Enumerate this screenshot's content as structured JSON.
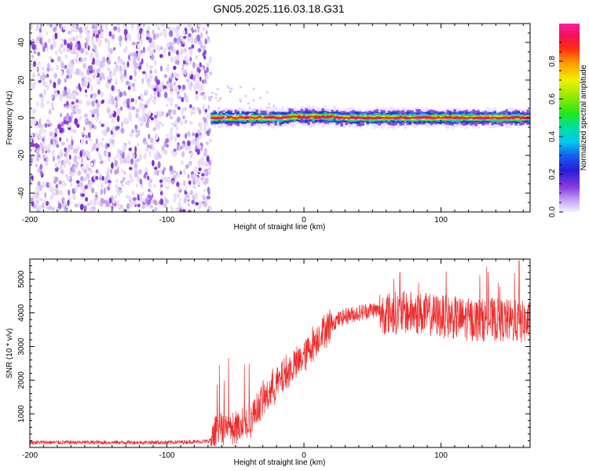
{
  "title": "GN05.2025.116.03.18.G31",
  "chart_data": [
    {
      "type": "heatmap",
      "xlabel": "Height of straight line (km)",
      "ylabel": "Frequency (Hz)",
      "xlim": [
        -200,
        165
      ],
      "ylim": [
        -50,
        50
      ],
      "xticks": [
        -200,
        -100,
        0,
        100
      ],
      "yticks": [
        -40,
        -20,
        0,
        20,
        40
      ],
      "colorbar": {
        "label": "Normalized spectral amplitude",
        "range": [
          0,
          1
        ],
        "ticks": [
          0.0,
          0.2,
          0.4,
          0.6,
          0.8
        ]
      },
      "regions": [
        {
          "x_range": [
            -200,
            -68
          ],
          "description_values": "broadband noise, amplitude ~0.05-0.15 across all frequencies"
        },
        {
          "x_range": [
            -68,
            165
          ],
          "center_frequency": 0,
          "peak_amplitude": 1.0
        }
      ],
      "grid": false
    },
    {
      "type": "line",
      "xlabel": "Height of straight line (km)",
      "ylabel": "SNR (10 * v/v)",
      "xlim": [
        -200,
        165
      ],
      "ylim": [
        0,
        5600
      ],
      "xticks": [
        -200,
        -100,
        0,
        100
      ],
      "yticks": [
        1000,
        2000,
        3000,
        4000,
        5000
      ],
      "color": "#ef2a2a",
      "x": [
        -200,
        -150,
        -100,
        -70,
        -60,
        -50,
        -40,
        -30,
        -20,
        -10,
        0,
        10,
        20,
        30,
        40,
        50,
        60,
        80,
        100,
        120,
        140,
        165
      ],
      "values": [
        150,
        150,
        150,
        180,
        500,
        600,
        800,
        1400,
        1900,
        2300,
        2700,
        3300,
        3700,
        3900,
        4000,
        4100,
        4000,
        4000,
        3900,
        3800,
        3800,
        3700
      ],
      "peaks": [
        {
          "x": -55,
          "value": 2650
        },
        {
          "x": 70,
          "value": 5200
        },
        {
          "x": 157,
          "value": 5550
        }
      ],
      "grid": false
    }
  ]
}
